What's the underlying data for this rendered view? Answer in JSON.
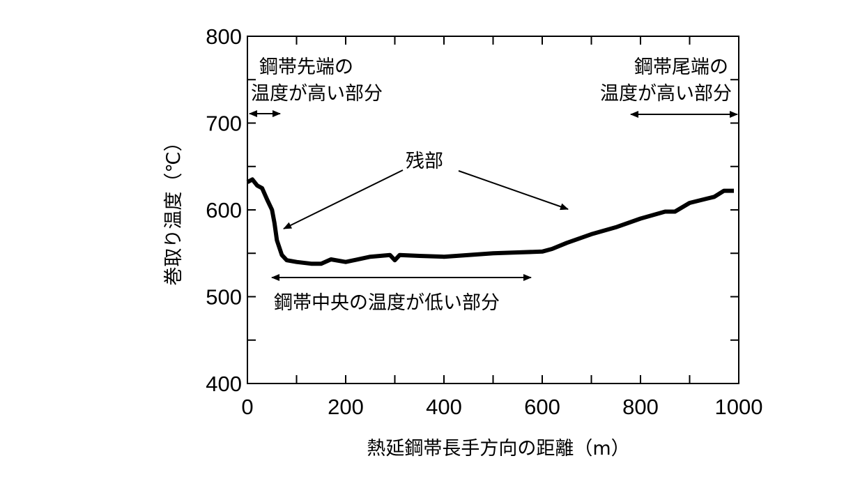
{
  "chart_data": {
    "type": "line",
    "title": "",
    "xlabel": "熱延鋼帯長手方向の距離（m）",
    "ylabel": "巻取り温度（℃）",
    "xlim": [
      0,
      1000
    ],
    "ylim": [
      400,
      800
    ],
    "xticks": [
      0,
      200,
      400,
      600,
      800,
      1000
    ],
    "yticks": [
      400,
      500,
      600,
      700,
      800
    ],
    "grid": false,
    "line_color": "#000000",
    "series": [
      {
        "x": [
          0,
          10,
          20,
          30,
          40,
          50,
          55,
          60,
          70,
          80,
          100,
          130,
          150,
          170,
          200,
          250,
          290,
          300,
          310,
          350,
          400,
          450,
          500,
          550,
          600,
          620,
          650,
          700,
          750,
          800,
          850,
          870,
          900,
          950,
          970,
          990
        ],
        "y": [
          632,
          635,
          628,
          625,
          612,
          600,
          585,
          565,
          548,
          542,
          540,
          538,
          538,
          543,
          540,
          546,
          548,
          542,
          548,
          547,
          546,
          548,
          550,
          551,
          552,
          555,
          562,
          572,
          580,
          590,
          598,
          598,
          608,
          615,
          622,
          622
        ]
      }
    ],
    "annotations": {
      "head_line1": "鋼帯先端の",
      "head_line2": "温度が高い部分",
      "tail_line1": "鋼帯尾端の",
      "tail_line2": "温度が高い部分",
      "remainder": "残部",
      "center": "鋼帯中央の温度が低い部分"
    }
  }
}
